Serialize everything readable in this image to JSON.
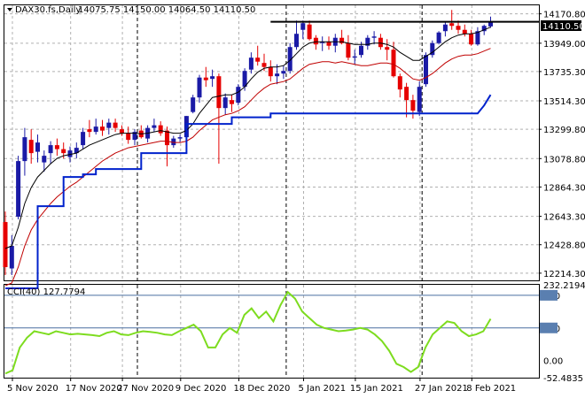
{
  "chart_data": [
    {
      "type": "candlestick",
      "title": "DAX30.fs,Daily",
      "ohlc_readout": "14075.75 14150.00 14064.50 14110.50",
      "last_price_label": "14110.50",
      "ylim": [
        12160,
        14235
      ],
      "y_ticks": [
        "14170.80",
        "13949.00",
        "13735.30",
        "13514.30",
        "13299.80",
        "13078.80",
        "12864.30",
        "12643.30",
        "12428.80",
        "12214.30"
      ],
      "x_ticks": [
        "5 Nov 2020",
        "17 Nov 2020",
        "27 Nov 2020",
        "9 Dec 2020",
        "18 Dec 2020",
        "5 Jan 2021",
        "15 Jan 2021",
        "27 Jan 2021",
        "8 Feb 2021"
      ],
      "resistance_level": 14110.5,
      "colors": {
        "up": "#1a1aa6",
        "down": "#e60000",
        "mid_line": "#000000",
        "lower_band": "#c00000",
        "support_step": "#0022cc"
      },
      "candles": [
        {
          "o": 12600,
          "h": 12680,
          "l": 12200,
          "c": 12260
        },
        {
          "o": 12250,
          "h": 12500,
          "l": 12200,
          "c": 12420
        },
        {
          "o": 12640,
          "h": 13100,
          "l": 12620,
          "c": 13060
        },
        {
          "o": 13060,
          "h": 13310,
          "l": 12950,
          "c": 13240
        },
        {
          "o": 13220,
          "h": 13300,
          "l": 13040,
          "c": 13120
        },
        {
          "o": 13130,
          "h": 13260,
          "l": 13050,
          "c": 13200
        },
        {
          "o": 13050,
          "h": 13140,
          "l": 12980,
          "c": 13100
        },
        {
          "o": 13120,
          "h": 13210,
          "l": 13040,
          "c": 13180
        },
        {
          "o": 13180,
          "h": 13230,
          "l": 13100,
          "c": 13150
        },
        {
          "o": 13150,
          "h": 13200,
          "l": 13080,
          "c": 13120
        },
        {
          "o": 13090,
          "h": 13170,
          "l": 13050,
          "c": 13140
        },
        {
          "o": 13120,
          "h": 13200,
          "l": 13080,
          "c": 13160
        },
        {
          "o": 13180,
          "h": 13310,
          "l": 13150,
          "c": 13280
        },
        {
          "o": 13300,
          "h": 13370,
          "l": 13240,
          "c": 13280
        },
        {
          "o": 13280,
          "h": 13380,
          "l": 13260,
          "c": 13320
        },
        {
          "o": 13320,
          "h": 13370,
          "l": 13250,
          "c": 13290
        },
        {
          "o": 13310,
          "h": 13380,
          "l": 13260,
          "c": 13350
        },
        {
          "o": 13350,
          "h": 13380,
          "l": 13280,
          "c": 13310
        },
        {
          "o": 13300,
          "h": 13330,
          "l": 13250,
          "c": 13270
        },
        {
          "o": 13270,
          "h": 13320,
          "l": 13190,
          "c": 13220
        },
        {
          "o": 13220,
          "h": 13300,
          "l": 13180,
          "c": 13280
        },
        {
          "o": 13290,
          "h": 13330,
          "l": 13230,
          "c": 13240
        },
        {
          "o": 13230,
          "h": 13330,
          "l": 13200,
          "c": 13310
        },
        {
          "o": 13310,
          "h": 13380,
          "l": 13280,
          "c": 13330
        },
        {
          "o": 13330,
          "h": 13360,
          "l": 13250,
          "c": 13270
        },
        {
          "o": 13290,
          "h": 13320,
          "l": 13020,
          "c": 13180
        },
        {
          "o": 13180,
          "h": 13250,
          "l": 13160,
          "c": 13230
        },
        {
          "o": 13230,
          "h": 13260,
          "l": 13200,
          "c": 13240
        },
        {
          "o": 13240,
          "h": 13400,
          "l": 13220,
          "c": 13400
        },
        {
          "o": 13430,
          "h": 13560,
          "l": 13420,
          "c": 13540
        },
        {
          "o": 13540,
          "h": 13710,
          "l": 13500,
          "c": 13690
        },
        {
          "o": 13690,
          "h": 13770,
          "l": 13620,
          "c": 13670
        },
        {
          "o": 13680,
          "h": 13750,
          "l": 13620,
          "c": 13700
        },
        {
          "o": 13700,
          "h": 13720,
          "l": 13040,
          "c": 13460
        },
        {
          "o": 13460,
          "h": 13570,
          "l": 13410,
          "c": 13540
        },
        {
          "o": 13520,
          "h": 13560,
          "l": 13430,
          "c": 13490
        },
        {
          "o": 13500,
          "h": 13640,
          "l": 13480,
          "c": 13620
        },
        {
          "o": 13620,
          "h": 13760,
          "l": 13590,
          "c": 13740
        },
        {
          "o": 13750,
          "h": 13880,
          "l": 13720,
          "c": 13840
        },
        {
          "o": 13840,
          "h": 13930,
          "l": 13780,
          "c": 13810
        },
        {
          "o": 13800,
          "h": 13870,
          "l": 13740,
          "c": 13770
        },
        {
          "o": 13770,
          "h": 13820,
          "l": 13660,
          "c": 13700
        },
        {
          "o": 13700,
          "h": 13790,
          "l": 13640,
          "c": 13720
        },
        {
          "o": 13720,
          "h": 13780,
          "l": 13680,
          "c": 13740
        },
        {
          "o": 13740,
          "h": 13950,
          "l": 13720,
          "c": 13920
        },
        {
          "o": 13920,
          "h": 14120,
          "l": 13900,
          "c": 14020
        },
        {
          "o": 14050,
          "h": 14120,
          "l": 13980,
          "c": 14100
        },
        {
          "o": 14090,
          "h": 14120,
          "l": 13970,
          "c": 13980
        },
        {
          "o": 13990,
          "h": 14010,
          "l": 13900,
          "c": 13940
        },
        {
          "o": 13950,
          "h": 14000,
          "l": 13890,
          "c": 13960
        },
        {
          "o": 13960,
          "h": 14000,
          "l": 13900,
          "c": 13930
        },
        {
          "o": 13930,
          "h": 14020,
          "l": 13880,
          "c": 13990
        },
        {
          "o": 13990,
          "h": 14050,
          "l": 13940,
          "c": 13950
        },
        {
          "o": 13950,
          "h": 14010,
          "l": 13820,
          "c": 13840
        },
        {
          "o": 13840,
          "h": 13900,
          "l": 13790,
          "c": 13850
        },
        {
          "o": 13860,
          "h": 13960,
          "l": 13840,
          "c": 13930
        },
        {
          "o": 13930,
          "h": 14010,
          "l": 13900,
          "c": 13990
        },
        {
          "o": 13990,
          "h": 14040,
          "l": 13940,
          "c": 14000
        },
        {
          "o": 13990,
          "h": 14020,
          "l": 13900,
          "c": 13920
        },
        {
          "o": 13920,
          "h": 13980,
          "l": 13820,
          "c": 13900
        },
        {
          "o": 13900,
          "h": 13960,
          "l": 13690,
          "c": 13700
        },
        {
          "o": 13700,
          "h": 13720,
          "l": 13540,
          "c": 13600
        },
        {
          "o": 13620,
          "h": 13650,
          "l": 13390,
          "c": 13520
        },
        {
          "o": 13520,
          "h": 13560,
          "l": 13380,
          "c": 13440
        },
        {
          "o": 13430,
          "h": 13660,
          "l": 13400,
          "c": 13620
        },
        {
          "o": 13640,
          "h": 13880,
          "l": 13620,
          "c": 13860
        },
        {
          "o": 13860,
          "h": 13970,
          "l": 13840,
          "c": 13950
        },
        {
          "o": 13950,
          "h": 14040,
          "l": 13940,
          "c": 14030
        },
        {
          "o": 14040,
          "h": 14110,
          "l": 14000,
          "c": 14090
        },
        {
          "o": 14100,
          "h": 14200,
          "l": 14050,
          "c": 14080
        },
        {
          "o": 14080,
          "h": 14120,
          "l": 14020,
          "c": 14050
        },
        {
          "o": 14050,
          "h": 14090,
          "l": 14000,
          "c": 14020
        },
        {
          "o": 14020,
          "h": 14050,
          "l": 13930,
          "c": 13940
        },
        {
          "o": 13940,
          "h": 14070,
          "l": 13930,
          "c": 14040
        },
        {
          "o": 14040,
          "h": 14090,
          "l": 14010,
          "c": 14080
        },
        {
          "o": 14075.75,
          "h": 14150,
          "l": 14064.5,
          "c": 14110.5
        }
      ],
      "mid_line": [
        12400,
        12420,
        12560,
        12740,
        12860,
        12940,
        12990,
        13040,
        13080,
        13100,
        13110,
        13120,
        13150,
        13180,
        13200,
        13220,
        13240,
        13260,
        13270,
        13270,
        13270,
        13265,
        13270,
        13280,
        13290,
        13280,
        13270,
        13270,
        13290,
        13340,
        13420,
        13480,
        13540,
        13550,
        13560,
        13560,
        13580,
        13620,
        13680,
        13730,
        13760,
        13770,
        13770,
        13780,
        13820,
        13870,
        13920,
        13950,
        13960,
        13960,
        13960,
        13960,
        13960,
        13950,
        13940,
        13940,
        13940,
        13950,
        13950,
        13940,
        13920,
        13880,
        13850,
        13820,
        13820,
        13850,
        13880,
        13920,
        13960,
        13990,
        14010,
        14020,
        14020,
        14030,
        14050,
        14070
      ],
      "lower_band": [
        12120,
        12140,
        12260,
        12420,
        12540,
        12620,
        12680,
        12740,
        12790,
        12830,
        12870,
        12900,
        12940,
        12980,
        13020,
        13060,
        13090,
        13120,
        13140,
        13160,
        13170,
        13180,
        13190,
        13200,
        13210,
        13210,
        13200,
        13200,
        13210,
        13240,
        13290,
        13330,
        13370,
        13390,
        13410,
        13420,
        13440,
        13470,
        13520,
        13570,
        13610,
        13640,
        13650,
        13660,
        13680,
        13720,
        13760,
        13790,
        13800,
        13810,
        13810,
        13800,
        13810,
        13800,
        13790,
        13780,
        13780,
        13790,
        13800,
        13800,
        13790,
        13760,
        13720,
        13680,
        13670,
        13690,
        13720,
        13760,
        13800,
        13830,
        13850,
        13860,
        13860,
        13870,
        13890,
        13910
      ],
      "support_step": [
        {
          "from": 0,
          "to": 5,
          "value": 12100
        },
        {
          "from": 5,
          "to": 9,
          "value": 12720
        },
        {
          "from": 9,
          "to": 12,
          "value": 12940
        },
        {
          "from": 12,
          "to": 14,
          "value": 12960
        },
        {
          "from": 14,
          "to": 21,
          "value": 13000
        },
        {
          "from": 21,
          "to": 28,
          "value": 13120
        },
        {
          "from": 28,
          "to": 35,
          "value": 13340
        },
        {
          "from": 35,
          "to": 41,
          "value": 13390
        },
        {
          "from": 41,
          "to": 73,
          "value": 13420
        }
      ],
      "support_end": [
        {
          "i": 73,
          "v": 13420
        },
        {
          "i": 74,
          "v": 13480
        },
        {
          "i": 75,
          "v": 13560
        }
      ]
    },
    {
      "type": "line",
      "title": "CCI(40) 127.7794",
      "ylim": [
        -52.4835,
        232.2194
      ],
      "y_ticks": [
        "232.2194",
        "200",
        "100",
        "0.00",
        "-52.4835"
      ],
      "levels": [
        200,
        100
      ],
      "series": [
        {
          "values": [
            -40,
            -30,
            40,
            70,
            90,
            85,
            80,
            90,
            85,
            80,
            82,
            80,
            78,
            75,
            85,
            90,
            80,
            78,
            85,
            90,
            88,
            85,
            80,
            78,
            90,
            100,
            110,
            90,
            40,
            40,
            80,
            100,
            85,
            140,
            160,
            130,
            150,
            120,
            170,
            210,
            190,
            150,
            130,
            110,
            100,
            95,
            90,
            92,
            95,
            100,
            95,
            80,
            60,
            30,
            -10,
            -20,
            -35,
            -20,
            40,
            80,
            100,
            120,
            115,
            90,
            75,
            80,
            90,
            127.7794
          ]
        }
      ]
    }
  ]
}
